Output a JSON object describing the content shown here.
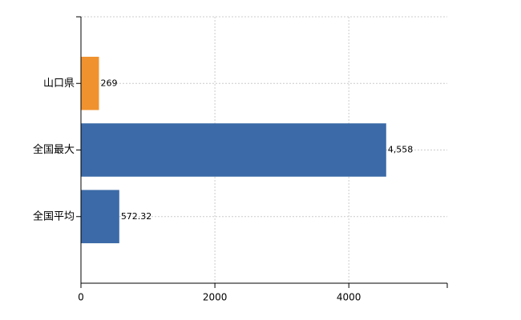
{
  "chart_data": {
    "type": "bar",
    "orientation": "horizontal",
    "categories": [
      "山口県",
      "全国最大",
      "全国平均"
    ],
    "values": [
      269,
      4558,
      572.32
    ],
    "value_labels": [
      "269",
      "4,558",
      "572.32"
    ],
    "colors": [
      "#f0922e",
      "#3c6aa8",
      "#3c6aa8"
    ],
    "xlim": [
      0,
      5470
    ],
    "xticks": [
      0,
      2000,
      4000
    ],
    "grid": true
  }
}
